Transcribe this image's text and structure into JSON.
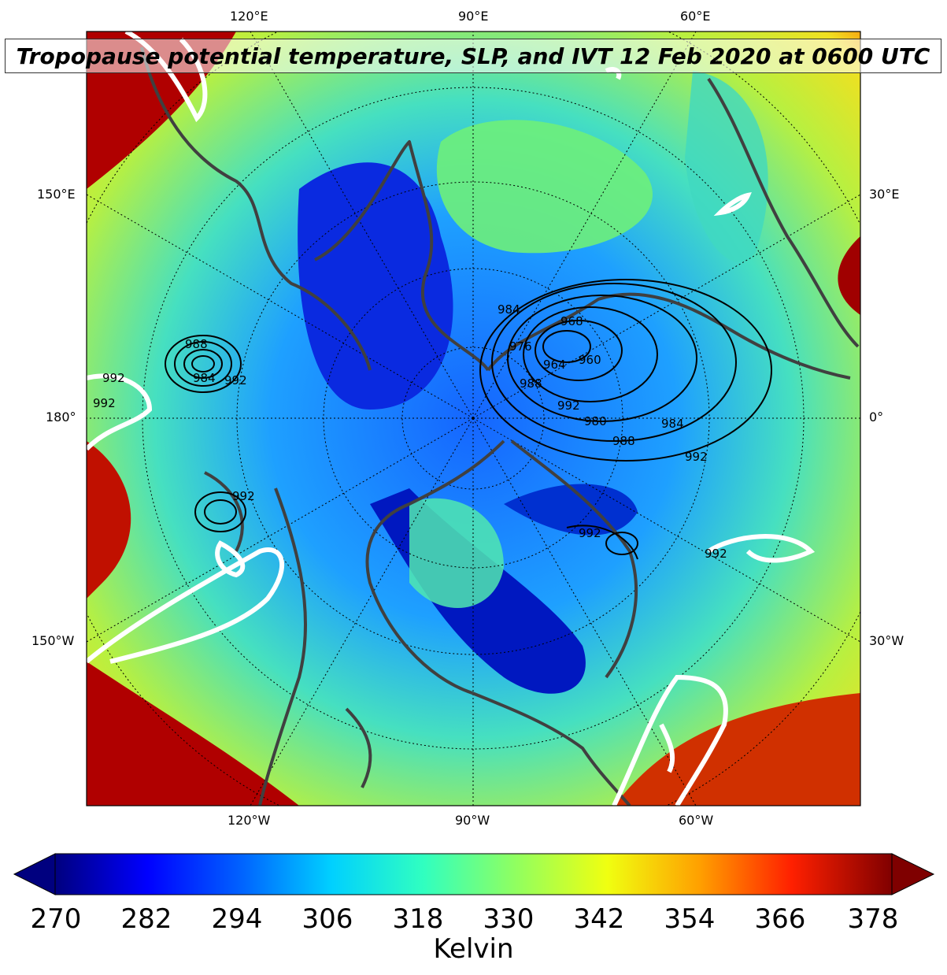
{
  "title": "Tropopause potential temperature, SLP, and IVT 12 Feb 2020 at 0600 UTC",
  "lon_labels": {
    "top": [
      "120°E",
      "90°E",
      "60°E"
    ],
    "left": [
      "150°E",
      "180°",
      "150°W"
    ],
    "right": [
      "30°E",
      "0°",
      "30°W"
    ],
    "bottom": [
      "120°W",
      "90°W",
      "60°W"
    ]
  },
  "slp_labels": [
    "984",
    "968",
    "976",
    "964",
    "960",
    "988",
    "980",
    "992",
    "984",
    "988",
    "992",
    "984",
    "992",
    "992",
    "992",
    "992",
    "988",
    "992",
    "992"
  ],
  "colorbar": {
    "ticks": [
      "270",
      "282",
      "294",
      "306",
      "318",
      "330",
      "342",
      "354",
      "366",
      "378"
    ],
    "label": "Kelvin",
    "min": 270,
    "max": 381,
    "colormap": [
      "#00007f",
      "#0000ff",
      "#007fff",
      "#00e5f7",
      "#4dffaa",
      "#aaff4d",
      "#f7f700",
      "#ff8c00",
      "#ff1e00",
      "#7f0000"
    ]
  },
  "colors": {
    "coastline": "#404040",
    "slp_contour": "#000000",
    "ivt_contour": "#ffffff",
    "station_marker": "#b000c0"
  }
}
